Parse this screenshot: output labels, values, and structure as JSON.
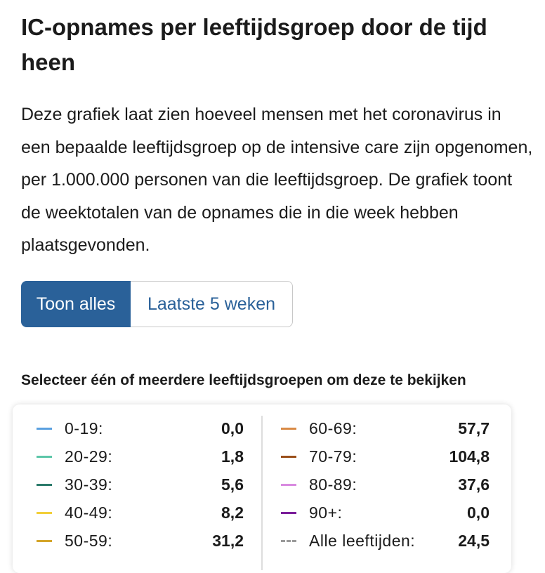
{
  "header": {
    "title": "IC-opnames per leeftijdsgroep door de tijd heen",
    "description": "Deze grafiek laat zien hoeveel mensen met het coronavirus in een bepaalde leeftijdsgroep op de intensive care zijn opgenomen, per 1.000.000 personen van die leeftijdsgroep. De grafiek toont de weektotalen van de opnames die in die week hebben plaatsgevonden."
  },
  "buttons": [
    "Toon alles",
    "Laatste 5 weken"
  ],
  "legend": {
    "title": "Selecteer één of meerdere leeftijdsgroepen om deze te bekijken",
    "items": [
      {
        "label": "0-19:",
        "value": "0,0",
        "color": "#5aa0e0"
      },
      {
        "label": "20-29:",
        "value": "1,8",
        "color": "#5cc6a8"
      },
      {
        "label": "30-39:",
        "value": "5,6",
        "color": "#2a7a6a"
      },
      {
        "label": "40-49:",
        "value": "8,2",
        "color": "#f2cf3a"
      },
      {
        "label": "50-59:",
        "value": "31,2",
        "color": "#d4a52a"
      },
      {
        "label": "60-69:",
        "value": "57,7",
        "color": "#d98a45"
      },
      {
        "label": "70-79:",
        "value": "104,8",
        "color": "#9a4f1a"
      },
      {
        "label": "80-89:",
        "value": "37,6",
        "color": "#d98ae0"
      },
      {
        "label": "90+:",
        "value": "0,0",
        "color": "#7b1e9a"
      },
      {
        "label": "Alle leeftijden:",
        "value": "24,5",
        "color": "#9a9a9a",
        "dashed": true
      }
    ]
  }
}
